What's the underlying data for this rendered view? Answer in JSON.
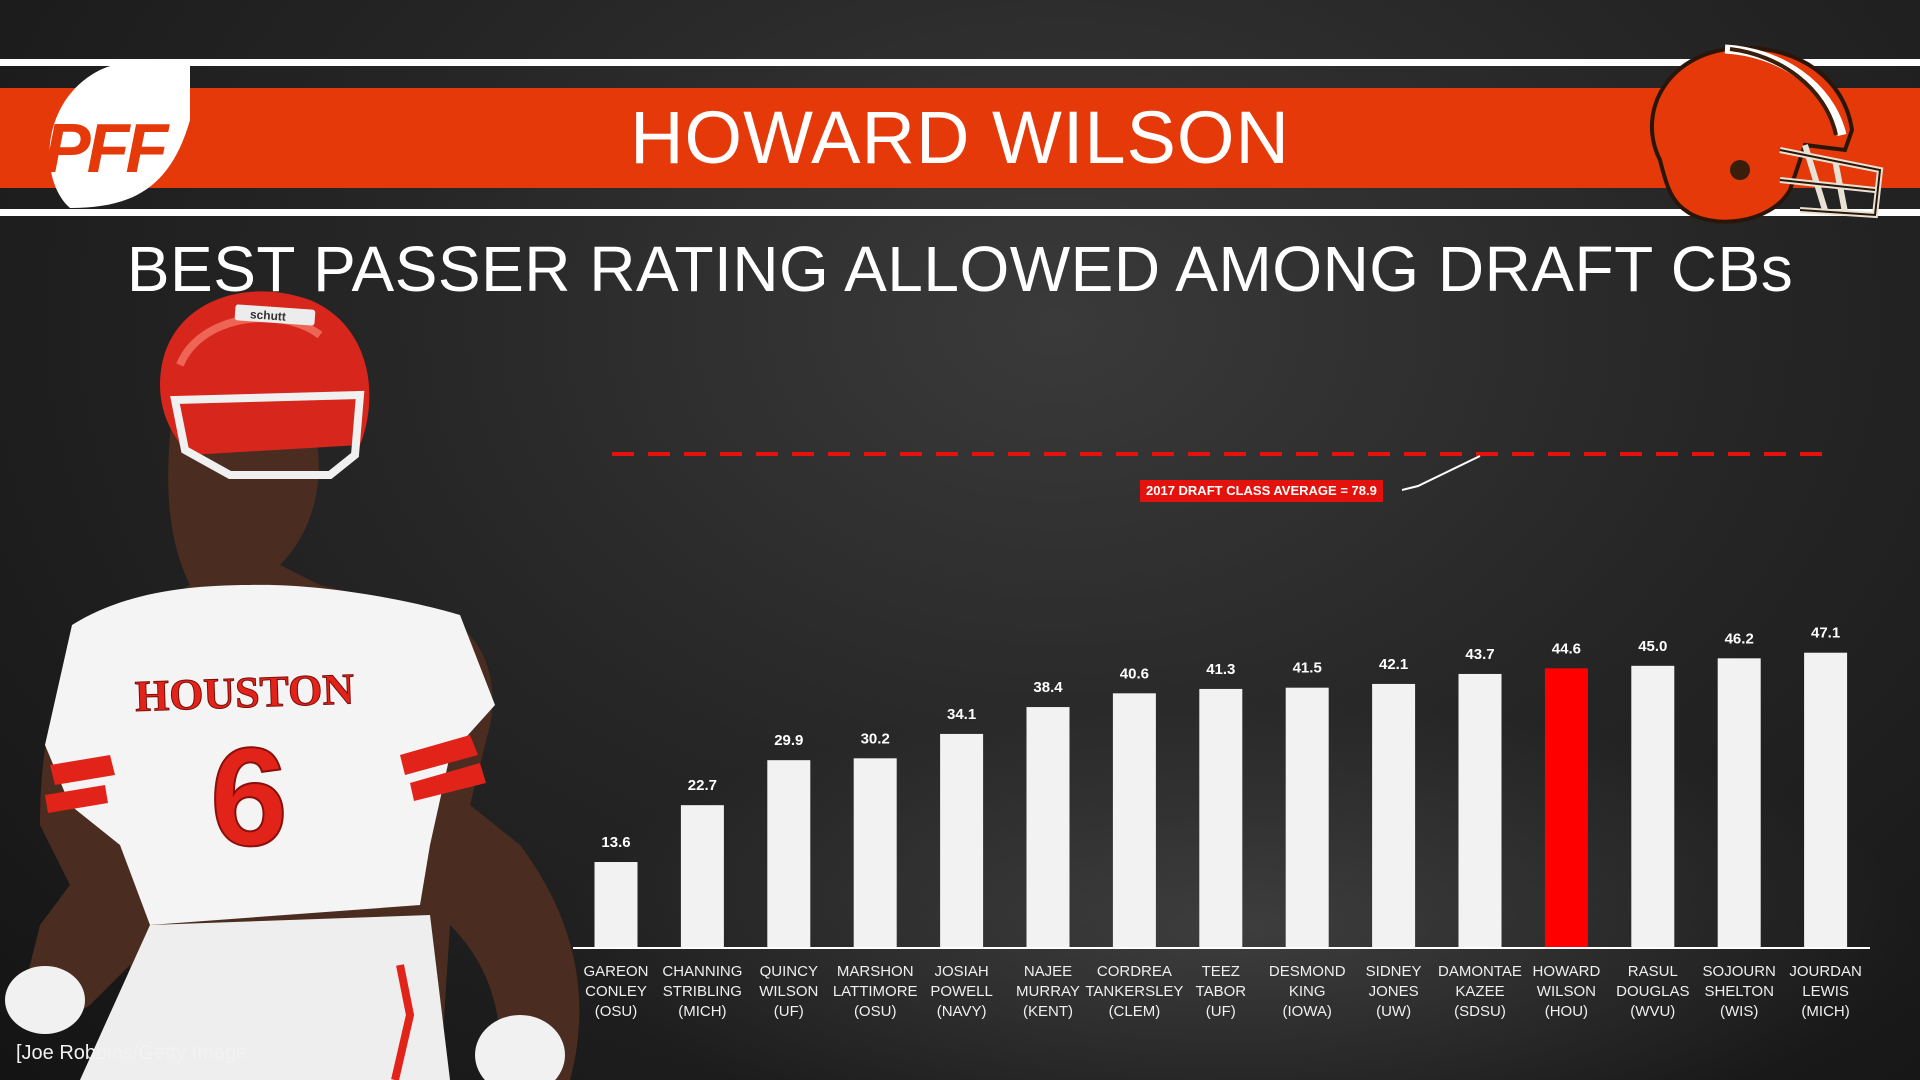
{
  "header": {
    "brand": "PFF",
    "player_name": "HOWARD WILSON",
    "subtitle": "BEST PASSER RATING ALLOWED AMONG DRAFT CBs"
  },
  "photo_credit": "[Joe Robbins/Getty Image",
  "player_jersey": {
    "school": "HOUSTON",
    "number": "6",
    "helmet_brand": "schutt"
  },
  "colors": {
    "banner": "#e5390a",
    "highlight_bar": "#ff0000",
    "bar": "#f2f2f2",
    "average_line": "#e4120c",
    "jersey_accent": "#e2231a"
  },
  "icons": {
    "logo": "pff-logo",
    "team": "browns-helmet-icon"
  },
  "chart_data": {
    "type": "bar",
    "title": "BEST PASSER RATING ALLOWED AMONG DRAFT CBs",
    "categories": [
      [
        "GAREON",
        "CONLEY",
        "(OSU)"
      ],
      [
        "CHANNING",
        "STRIBLING",
        "(MICH)"
      ],
      [
        "QUINCY",
        "WILSON",
        "(UF)"
      ],
      [
        "MARSHON",
        "LATTIMORE",
        "(OSU)"
      ],
      [
        "JOSIAH",
        "POWELL",
        "(NAVY)"
      ],
      [
        "NAJEE",
        "MURRAY",
        "(KENT)"
      ],
      [
        "CORDREA",
        "TANKERSLEY",
        "(CLEM)"
      ],
      [
        "TEEZ",
        "TABOR",
        "(UF)"
      ],
      [
        "DESMOND",
        "KING",
        "(IOWA)"
      ],
      [
        "SIDNEY",
        "JONES",
        "(UW)"
      ],
      [
        "DAMONTAE",
        "KAZEE",
        "(SDSU)"
      ],
      [
        "HOWARD",
        "WILSON",
        "(HOU)"
      ],
      [
        "RASUL",
        "DOUGLAS",
        "(WVU)"
      ],
      [
        "SOJOURN",
        "SHELTON",
        "(WIS)"
      ],
      [
        "JOURDAN",
        "LEWIS",
        "(MICH)"
      ]
    ],
    "values": [
      13.6,
      22.7,
      29.9,
      30.2,
      34.1,
      38.4,
      40.6,
      41.3,
      41.5,
      42.1,
      43.7,
      44.6,
      45.0,
      46.2,
      47.1
    ],
    "value_labels": [
      "13.6",
      "22.7",
      "29.9",
      "30.2",
      "34.1",
      "38.4",
      "40.6",
      "41.3",
      "41.5",
      "42.1",
      "43.7",
      "44.6",
      "45.0",
      "46.2",
      "47.1"
    ],
    "highlight_index": 11,
    "reference_line": {
      "value": 78.9,
      "label": "2017 DRAFT CLASS AVERAGE = 78.9"
    },
    "ylim": [
      0,
      83
    ],
    "grid": false,
    "legend": "none",
    "xlabel": "",
    "ylabel": ""
  }
}
